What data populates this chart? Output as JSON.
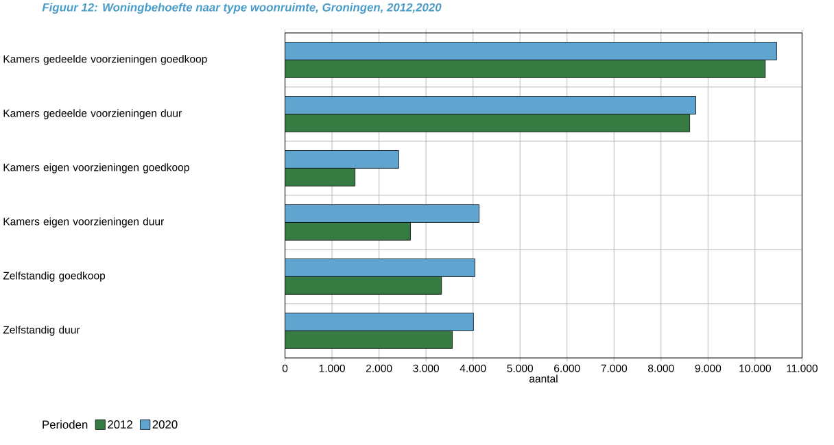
{
  "chart_data": {
    "type": "bar",
    "orientation": "horizontal",
    "title": "Figuur 12: Woningbehoefte naar type woonruimte, Groningen, 2012,2020",
    "xlabel": "aantal",
    "legend_title": "Perioden",
    "categories": [
      "Kamers gedeelde voorzieningen goedkoop",
      "Kamers gedeelde voorzieningen duur",
      "Kamers eigen voorzieningen goedkoop",
      "Kamers eigen voorzieningen duur",
      "Zelfstandig goedkoop",
      "Zelfstandig duur"
    ],
    "series": [
      {
        "name": "2012",
        "color": "#367c42",
        "values": [
          10220,
          8610,
          1490,
          2670,
          3330,
          3560
        ]
      },
      {
        "name": "2020",
        "color": "#5fa5cf",
        "values": [
          10460,
          8740,
          2420,
          4130,
          4040,
          4010
        ]
      }
    ],
    "xlim": [
      0,
      11000
    ],
    "xticks": [
      0,
      {
        "value": 1000,
        "label": "1.000"
      },
      {
        "value": 2000,
        "label": "2.000"
      },
      {
        "value": 3000,
        "label": "3.000"
      },
      {
        "value": 4000,
        "label": "4.000"
      },
      {
        "value": 5000,
        "label": "5.000"
      },
      {
        "value": 6000,
        "label": "6.000"
      },
      {
        "value": 7000,
        "label": "7.000"
      },
      {
        "value": 8000,
        "label": "8.000"
      },
      {
        "value": 9000,
        "label": "9.000"
      },
      {
        "value": 10000,
        "label": "10.000"
      },
      {
        "value": 11000,
        "label": "11.000"
      }
    ],
    "grid": true,
    "legend": "bottom left"
  }
}
